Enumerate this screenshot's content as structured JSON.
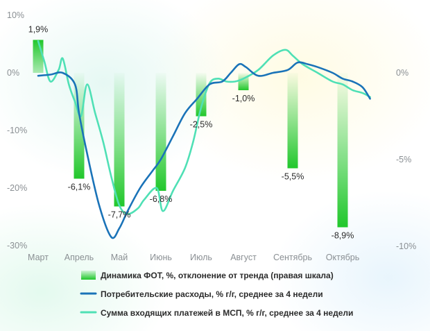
{
  "chart_data": {
    "type": "bar+line",
    "categories": [
      "Март",
      "Апрель",
      "Май",
      "Июнь",
      "Июль",
      "Август",
      "Сентябрь",
      "Октябрь"
    ],
    "left_axis": {
      "ticks": [
        "10%",
        "0%",
        "-10%",
        "-20%",
        "-30%"
      ],
      "values": [
        10,
        0,
        -10,
        -20,
        -30
      ],
      "ylim": [
        -30,
        10
      ]
    },
    "right_axis": {
      "ticks": [
        "0%",
        "-5%",
        "-10%"
      ],
      "values": [
        0,
        -5,
        -10
      ],
      "ylim": [
        -10,
        0
      ]
    },
    "bars": {
      "name": "Динамика ФОТ, %, отклонение от тренда (правая шкала)",
      "axis": "right",
      "values": [
        1.9,
        -6.1,
        -7.7,
        -6.8,
        -2.5,
        -1.0,
        -5.5,
        -8.9
      ],
      "labels": [
        "1,9%",
        "-6,1%",
        "-7,7%",
        "-6,8%",
        "-2,5%",
        "-1,0%",
        "-5,5%",
        "-8,9%"
      ],
      "color": "#21c72b"
    },
    "series": [
      {
        "name": "Потребительские расходы, % г/г, среднее за 4 недели",
        "axis": "left",
        "color": "#1a73b8",
        "x": [
          0,
          0.3,
          0.6,
          0.9,
          1.0,
          1.2,
          1.5,
          1.8,
          2.0,
          2.2,
          2.5,
          2.8,
          3.0,
          3.3,
          3.6,
          3.9,
          4.2,
          4.5,
          4.7,
          4.9,
          5.05,
          5.3,
          5.6,
          5.9,
          6.1,
          6.3,
          6.5,
          6.8,
          7.0,
          7.2,
          7.4,
          7.55
        ],
        "y": [
          -0.5,
          -0.3,
          0.0,
          -2.0,
          -7.0,
          -14.0,
          -23.0,
          -28.5,
          -27.0,
          -24.0,
          -20.0,
          -17.0,
          -15.0,
          -11.0,
          -7.0,
          -4.5,
          -2.0,
          -1.5,
          0.0,
          1.5,
          1.0,
          -0.5,
          0.0,
          0.5,
          1.8,
          1.5,
          1.0,
          0.0,
          -1.0,
          -1.5,
          -2.5,
          -4.5
        ]
      },
      {
        "name": "Сумма входящих платежей в МСП, % г/г, среднее за 4 недели",
        "axis": "left",
        "color": "#4fe0b5",
        "x": [
          0,
          0.15,
          0.3,
          0.5,
          0.6,
          0.75,
          0.9,
          1.05,
          1.2,
          1.4,
          1.6,
          1.8,
          2.0,
          2.2,
          2.45,
          2.6,
          2.9,
          3.05,
          3.3,
          3.6,
          3.8,
          4.0,
          4.2,
          4.4,
          4.6,
          4.8,
          5.0,
          5.3,
          5.6,
          5.85,
          6.0,
          6.2,
          6.5,
          6.8,
          7.0,
          7.2,
          7.4,
          7.55
        ],
        "y": [
          5.5,
          2.0,
          -1.5,
          0.5,
          2.5,
          -2.0,
          -5.0,
          -7.5,
          -2.0,
          -7.0,
          -12.0,
          -18.0,
          -23.0,
          -24.5,
          -23.5,
          -22.0,
          -20.0,
          -24.0,
          -20.5,
          -16.5,
          -12.0,
          -6.0,
          -1.8,
          -1.0,
          -1.5,
          -1.5,
          -1.0,
          0.5,
          3.0,
          4.0,
          3.0,
          1.5,
          0.0,
          -1.5,
          -2.0,
          -3.0,
          -3.5,
          -4.2
        ]
      }
    ],
    "legend_position": "bottom"
  }
}
